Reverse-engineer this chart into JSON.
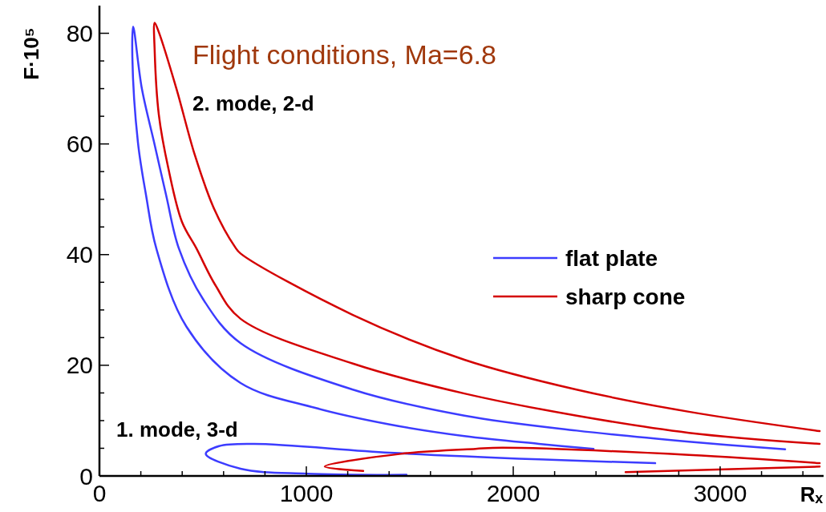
{
  "chart_data": {
    "type": "line",
    "title": "Flight conditions, Ma=6.8",
    "xlabel": "Rₓ",
    "ylabel": "F·10⁵",
    "annotations": [
      "2. mode, 2-d",
      "1. mode, 3-d"
    ],
    "xlim": [
      0,
      3500
    ],
    "ylim": [
      0,
      85
    ],
    "xticks": [
      0,
      {
        "value": 200,
        "label": null
      },
      {
        "value": 400,
        "label": null
      },
      {
        "value": 600,
        "label": null
      },
      {
        "value": 800,
        "label": null
      },
      1000,
      {
        "value": 1200,
        "label": null
      },
      {
        "value": 1400,
        "label": null
      },
      {
        "value": 1600,
        "label": null
      },
      {
        "value": 1800,
        "label": null
      },
      2000,
      {
        "value": 2200,
        "label": null
      },
      {
        "value": 2400,
        "label": null
      },
      {
        "value": 2600,
        "label": null
      },
      {
        "value": 2800,
        "label": null
      },
      3000,
      {
        "value": 3200,
        "label": null
      },
      {
        "value": 3400,
        "label": null
      }
    ],
    "yticks": [
      0,
      {
        "value": 5,
        "label": null
      },
      {
        "value": 10,
        "label": null
      },
      {
        "value": 15,
        "label": null
      },
      20,
      {
        "value": 25,
        "label": null
      },
      {
        "value": 30,
        "label": null
      },
      {
        "value": 35,
        "label": null
      },
      40,
      {
        "value": 45,
        "label": null
      },
      {
        "value": 50,
        "label": null
      },
      {
        "value": 55,
        "label": null
      },
      60,
      {
        "value": 65,
        "label": null
      },
      {
        "value": 70,
        "label": null
      },
      {
        "value": 75,
        "label": null
      },
      80
    ],
    "grid": false,
    "legend": "right",
    "marker": "none",
    "line_style": "solid",
    "series": [
      {
        "name": "flat plate",
        "color": "#3c3cff",
        "x": [
          2388,
          2124,
          1764,
          1403,
          1043,
          682,
          420,
          275,
          225,
          186,
          159,
          163,
          205,
          264,
          322,
          384,
          500,
          682,
          1225,
          1764,
          2306,
          2849,
          3314
        ],
        "values": [
          4.9,
          5.8,
          7.2,
          9.3,
          12.3,
          16.8,
          27,
          41.1,
          50.8,
          60.3,
          75.8,
          81.2,
          70.0,
          60.3,
          50.8,
          41.1,
          32,
          24.0,
          15.6,
          10.9,
          8.2,
          6.2,
          4.8
        ]
      },
      {
        "color": "#3c3cff",
        "x": [
          1484,
          1004,
          682,
          514,
          578,
          747,
          1403,
          2124,
          2686
        ],
        "values": [
          0.2,
          0.4,
          1.3,
          4.0,
          5.4,
          5.8,
          4.2,
          3.0,
          2.3
        ]
      },
      {
        "name": "sharp cone",
        "color": "#d40000",
        "x": [
          3481,
          2849,
          2306,
          1764,
          1225,
          682,
          560,
          469,
          399,
          333,
          287,
          267,
          267,
          287,
          372,
          461,
          554,
          655,
          682,
          1225,
          1764,
          2306,
          2849,
          3481
        ],
        "values": [
          5.8,
          7.8,
          10.9,
          14.9,
          20.3,
          28.4,
          34.5,
          41.1,
          45.9,
          55.6,
          65.3,
          76.8,
          81.9,
          80.2,
          70.0,
          58.0,
          48.3,
          41.4,
          40.2,
          29.1,
          21.0,
          15.6,
          11.6,
          8.1
        ]
      },
      {
        "color": "#d40000",
        "x": [
          1275,
          1089,
          1457,
          1818,
          1946,
          2849,
          3481
        ],
        "values": [
          0.9,
          1.7,
          4.0,
          4.9,
          5.1,
          3.8,
          2.3
        ]
      },
      {
        "color": "#d40000",
        "x": [
          2543,
          3481
        ],
        "values": [
          0.7,
          1.7
        ]
      }
    ]
  }
}
